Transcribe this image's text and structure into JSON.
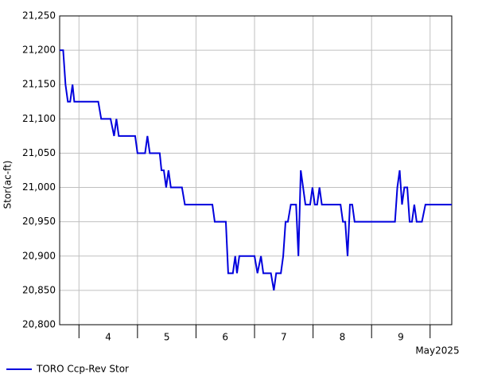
{
  "chart_data": {
    "type": "line",
    "ylabel": "Stor(ac-ft)",
    "x_unit_label": "May2025",
    "xlim": [
      3.67,
      10.37
    ],
    "xgrid": [
      4,
      5,
      6,
      7,
      8,
      9,
      10
    ],
    "xticks": [
      {
        "value": 4.5,
        "label": "4"
      },
      {
        "value": 5.5,
        "label": "5"
      },
      {
        "value": 6.5,
        "label": "6"
      },
      {
        "value": 7.5,
        "label": "7"
      },
      {
        "value": 8.5,
        "label": "8"
      },
      {
        "value": 9.5,
        "label": "9"
      }
    ],
    "ylim": [
      20800,
      21250
    ],
    "yticks": [
      {
        "value": 20800,
        "label": "20,800"
      },
      {
        "value": 20850,
        "label": "20,850"
      },
      {
        "value": 20900,
        "label": "20,900"
      },
      {
        "value": 20950,
        "label": "20,950"
      },
      {
        "value": 21000,
        "label": "21,000"
      },
      {
        "value": 21050,
        "label": "21,050"
      },
      {
        "value": 21100,
        "label": "21,100"
      },
      {
        "value": 21150,
        "label": "21,150"
      },
      {
        "value": 21200,
        "label": "21,200"
      },
      {
        "value": 21250,
        "label": "21,250"
      }
    ],
    "grid": true,
    "legend": "bottom-left",
    "series": [
      {
        "name": "TORO Ccp-Rev Stor",
        "color": "#0000dd",
        "x": [
          3.67,
          3.73,
          3.77,
          3.81,
          3.85,
          3.89,
          3.92,
          4.33,
          4.38,
          4.54,
          4.6,
          4.64,
          4.68,
          4.96,
          5.0,
          5.13,
          5.17,
          5.21,
          5.38,
          5.41,
          5.45,
          5.49,
          5.53,
          5.57,
          5.76,
          5.81,
          6.28,
          6.32,
          6.51,
          6.55,
          6.63,
          6.67,
          6.7,
          6.74,
          7.0,
          7.05,
          7.11,
          7.15,
          7.28,
          7.33,
          7.37,
          7.45,
          7.49,
          7.53,
          7.57,
          7.62,
          7.71,
          7.75,
          7.79,
          7.83,
          7.87,
          7.95,
          7.99,
          8.03,
          8.07,
          8.11,
          8.15,
          8.47,
          8.51,
          8.55,
          8.59,
          8.63,
          8.67,
          8.71,
          9.4,
          9.44,
          9.48,
          9.52,
          9.56,
          9.61,
          9.65,
          9.69,
          9.73,
          9.77,
          9.86,
          9.92,
          10.37
        ],
        "values": [
          21200,
          21200,
          21150,
          21125,
          21125,
          21150,
          21125,
          21125,
          21100,
          21100,
          21075,
          21100,
          21075,
          21075,
          21050,
          21050,
          21075,
          21050,
          21050,
          21025,
          21025,
          21000,
          21025,
          21000,
          21000,
          20975,
          20975,
          20950,
          20950,
          20875,
          20875,
          20900,
          20875,
          20900,
          20900,
          20875,
          20900,
          20875,
          20875,
          20850,
          20875,
          20875,
          20900,
          20950,
          20950,
          20975,
          20975,
          20900,
          21025,
          21000,
          20975,
          20975,
          21000,
          20975,
          20975,
          21000,
          20975,
          20975,
          20950,
          20950,
          20900,
          20975,
          20975,
          20950,
          20950,
          21000,
          21025,
          20975,
          21000,
          21000,
          20950,
          20950,
          20975,
          20950,
          20950,
          20975,
          20975
        ]
      }
    ]
  }
}
